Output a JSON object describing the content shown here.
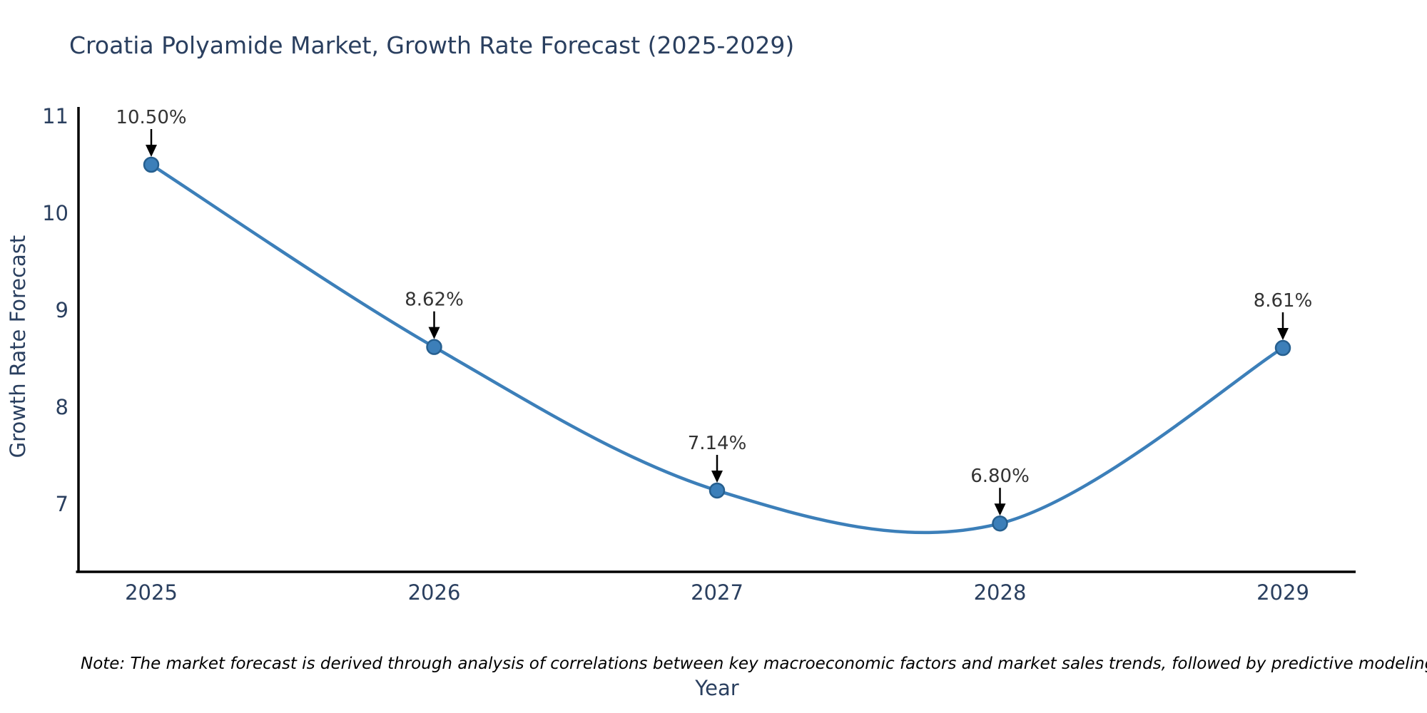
{
  "note": "Note: The market forecast is derived through analysis of correlations between key macroeconomic factors and market sales trends, followed by predictive modeling to project future sales",
  "chart_data": {
    "type": "line",
    "title": "Croatia Polyamide Market, Growth Rate Forecast (2025-2029)",
    "xlabel": "Year",
    "ylabel": "Growth Rate Forecast",
    "categories": [
      "2025",
      "2026",
      "2027",
      "2028",
      "2029"
    ],
    "series": [
      {
        "name": "Growth Rate Forecast",
        "values": [
          10.5,
          8.62,
          7.14,
          6.8,
          8.61
        ],
        "labels": [
          "10.50%",
          "8.62%",
          "7.14%",
          "6.80%",
          "8.61%"
        ]
      }
    ],
    "yticks": [
      7,
      8,
      9,
      10,
      11
    ],
    "ylim": [
      6.3,
      11.08
    ],
    "line_shape": "spline",
    "grid": false,
    "legend_position": "none",
    "colors": {
      "line": "#3c7fb9",
      "marker_fill": "#3c7fb9",
      "marker_edge": "#265f8f",
      "axis_line": "#000000",
      "axis_text": "#2a3f5f",
      "annotation_text": "#333333",
      "arrow": "#000000",
      "title_text": "#2a3f5f",
      "background": "#ffffff"
    }
  }
}
